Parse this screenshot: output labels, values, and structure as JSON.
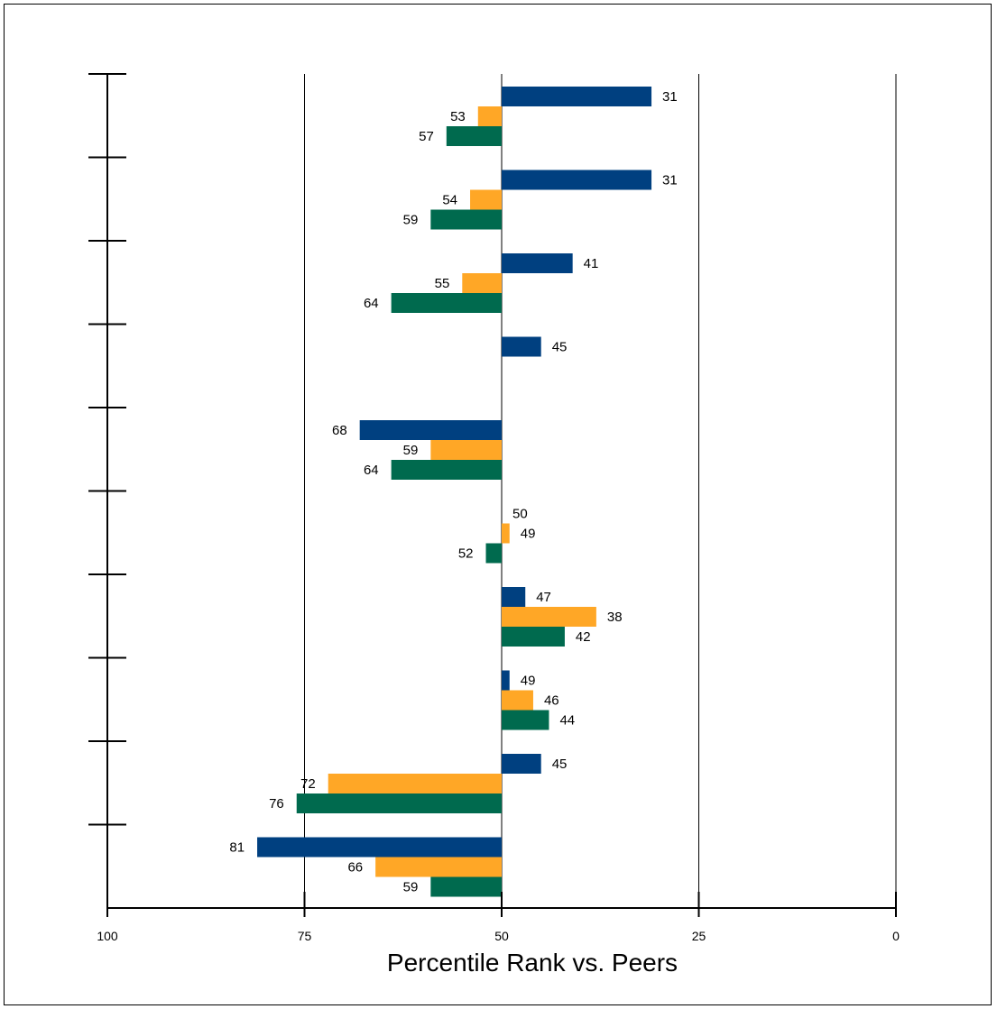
{
  "chart_data": {
    "type": "bar",
    "orientation": "horizontal",
    "title": "",
    "xlabel": "Percentile Rank vs. Peers",
    "ylabel": "",
    "xlim": [
      100,
      0
    ],
    "x_reversed": true,
    "x_ticks": [
      100,
      75,
      50,
      25,
      0
    ],
    "x_tick_labels": [
      "100",
      "75",
      "50",
      "25",
      "0"
    ],
    "gridlines_x": [
      75,
      50,
      25,
      0
    ],
    "baseline": 50,
    "legend": "none",
    "category_count": 10,
    "series": [
      {
        "color": "#004080",
        "values": [
          31,
          31,
          41,
          45,
          68,
          50,
          47,
          49,
          45,
          81
        ]
      },
      {
        "color": "#FFA726",
        "values": [
          53,
          54,
          55,
          null,
          59,
          49,
          38,
          46,
          72,
          66
        ]
      },
      {
        "color": "#006A4E",
        "values": [
          57,
          59,
          64,
          null,
          64,
          52,
          42,
          44,
          76,
          59
        ]
      }
    ]
  }
}
